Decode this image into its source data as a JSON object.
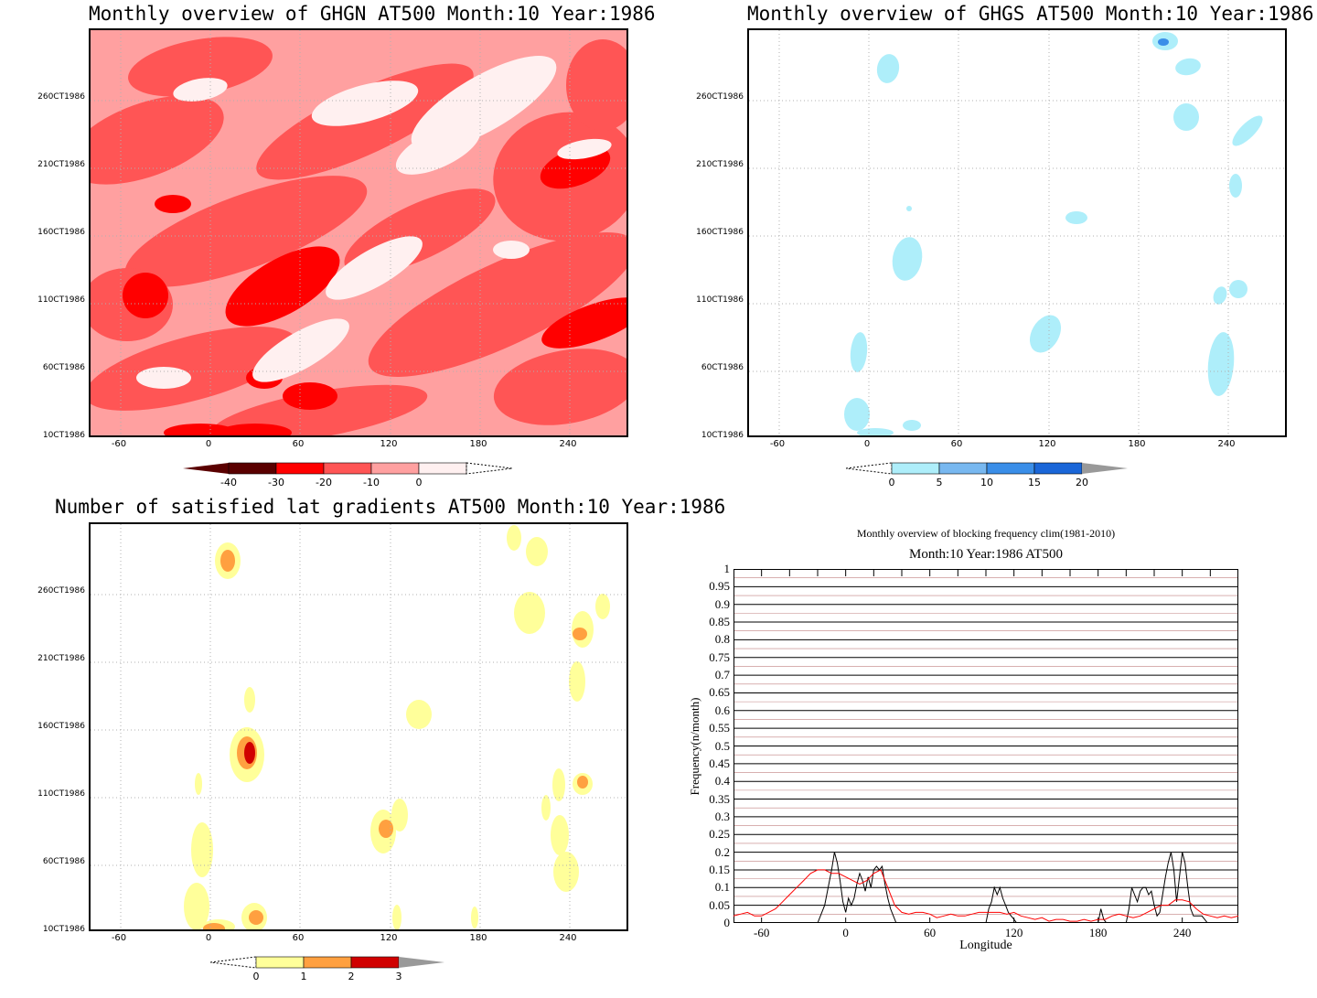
{
  "chart_data": [
    {
      "type": "heatmap",
      "title": "Monthly overview of GHGN AT500 Month:10 Year:1986",
      "x_ticks": [
        "-60",
        "0",
        "60",
        "120",
        "180",
        "240"
      ],
      "y_ticks": [
        "10CT1986",
        "60CT1986",
        "110CT1986",
        "160CT1986",
        "210CT1986",
        "260CT1986"
      ],
      "colorbar": {
        "labels": [
          "-40",
          "-30",
          "-20",
          "-10",
          "0"
        ],
        "colors": [
          "#5a0000",
          "#ff0000",
          "#ff5555",
          "#ffa0a0",
          "#fff0f0"
        ]
      }
    },
    {
      "type": "heatmap",
      "title": "Monthly overview of GHGS AT500 Month:10 Year:1986",
      "x_ticks": [
        "-60",
        "0",
        "60",
        "120",
        "180",
        "240"
      ],
      "y_ticks": [
        "10CT1986",
        "60CT1986",
        "110CT1986",
        "160CT1986",
        "210CT1986",
        "260CT1986"
      ],
      "colorbar": {
        "labels": [
          "0",
          "5",
          "10",
          "15",
          "20"
        ],
        "colors": [
          "#aeeefa",
          "#78b8f0",
          "#3a8ee8",
          "#1a66d8"
        ]
      }
    },
    {
      "type": "heatmap",
      "title": "Number of satisfied lat gradients AT500 Month:10 Year:1986",
      "x_ticks": [
        "-60",
        "0",
        "60",
        "120",
        "180",
        "240"
      ],
      "y_ticks": [
        "10CT1986",
        "60CT1986",
        "110CT1986",
        "160CT1986",
        "210CT1986",
        "260CT1986"
      ],
      "colorbar": {
        "labels": [
          "0",
          "1",
          "2",
          "3"
        ],
        "colors": [
          "#ffff9a",
          "#ffa040",
          "#d00000"
        ]
      }
    },
    {
      "type": "line",
      "title": "Monthly overview of blocking frequency clim(1981-2010)",
      "subtitle": "Month:10 Year:1986  AT500",
      "xlabel": "Longitude",
      "ylabel": "Frequency(n/month)",
      "x_ticks": [
        "-60",
        "0",
        "60",
        "120",
        "180",
        "240"
      ],
      "y_ticks": [
        "0",
        "0.05",
        "0.1",
        "0.15",
        "0.2",
        "0.25",
        "0.3",
        "0.35",
        "0.4",
        "0.45",
        "0.5",
        "0.55",
        "0.6",
        "0.65",
        "0.7",
        "0.75",
        "0.8",
        "0.85",
        "0.9",
        "0.95",
        "1"
      ],
      "xlim": [
        -80,
        280
      ],
      "ylim": [
        0,
        1
      ],
      "series": [
        {
          "color": "#000000",
          "x": [
            -80,
            -20,
            -15,
            -10,
            -8,
            -6,
            -4,
            -2,
            0,
            2,
            4,
            6,
            8,
            10,
            12,
            14,
            16,
            18,
            20,
            22,
            24,
            26,
            28,
            30,
            32,
            34,
            36,
            38,
            40,
            100,
            102,
            104,
            106,
            108,
            110,
            112,
            114,
            116,
            118,
            120,
            122,
            124,
            140,
            180,
            182,
            184,
            186,
            188,
            190,
            200,
            202,
            204,
            206,
            208,
            210,
            212,
            214,
            216,
            218,
            220,
            222,
            224,
            226,
            228,
            230,
            232,
            234,
            236,
            238,
            240,
            242,
            244,
            246,
            248,
            250,
            252,
            254,
            256,
            258,
            260,
            262,
            264,
            266,
            268,
            270,
            280
          ],
          "y": [
            0,
            0,
            0.05,
            0.15,
            0.2,
            0.17,
            0.12,
            0.06,
            0.03,
            0.07,
            0.05,
            0.07,
            0.11,
            0.14,
            0.12,
            0.09,
            0.13,
            0.1,
            0.15,
            0.16,
            0.15,
            0.16,
            0.11,
            0.07,
            0.04,
            0.02,
            0,
            0,
            0,
            0,
            0.04,
            0.06,
            0.1,
            0.08,
            0.1,
            0.07,
            0.05,
            0.03,
            0.02,
            0.01,
            0,
            0,
            0,
            0,
            0.04,
            0.01,
            0,
            0,
            0,
            0,
            0.04,
            0.1,
            0.08,
            0.06,
            0.09,
            0.1,
            0.1,
            0.08,
            0.09,
            0.05,
            0.02,
            0.03,
            0.08,
            0.13,
            0.17,
            0.2,
            0.15,
            0.06,
            0.13,
            0.2,
            0.17,
            0.1,
            0.04,
            0.02,
            0.02,
            0.02,
            0.02,
            0.01,
            0,
            0,
            0,
            0,
            0,
            0,
            0,
            0
          ]
        },
        {
          "color": "#ff0000",
          "x": [
            -80,
            -75,
            -70,
            -65,
            -60,
            -55,
            -50,
            -45,
            -40,
            -35,
            -30,
            -25,
            -20,
            -15,
            -10,
            -5,
            0,
            5,
            10,
            15,
            20,
            25,
            30,
            35,
            40,
            45,
            50,
            55,
            60,
            65,
            70,
            75,
            80,
            85,
            90,
            95,
            100,
            105,
            110,
            115,
            120,
            125,
            130,
            135,
            140,
            145,
            150,
            155,
            160,
            165,
            170,
            175,
            180,
            185,
            190,
            195,
            200,
            205,
            210,
            215,
            220,
            225,
            230,
            235,
            240,
            245,
            250,
            255,
            260,
            265,
            270,
            275,
            280
          ],
          "y": [
            0.02,
            0.025,
            0.03,
            0.02,
            0.02,
            0.03,
            0.04,
            0.06,
            0.08,
            0.1,
            0.12,
            0.14,
            0.15,
            0.15,
            0.14,
            0.14,
            0.13,
            0.12,
            0.11,
            0.12,
            0.14,
            0.15,
            0.1,
            0.05,
            0.03,
            0.025,
            0.03,
            0.03,
            0.025,
            0.015,
            0.02,
            0.025,
            0.02,
            0.02,
            0.025,
            0.03,
            0.03,
            0.03,
            0.03,
            0.025,
            0.03,
            0.02,
            0.015,
            0.01,
            0.015,
            0.005,
            0.01,
            0.01,
            0.005,
            0.005,
            0.01,
            0.005,
            0.01,
            0.01,
            0.02,
            0.025,
            0.02,
            0.015,
            0.02,
            0.03,
            0.04,
            0.05,
            0.05,
            0.065,
            0.065,
            0.06,
            0.04,
            0.025,
            0.02,
            0.015,
            0.02,
            0.015,
            0.02
          ]
        }
      ]
    }
  ]
}
